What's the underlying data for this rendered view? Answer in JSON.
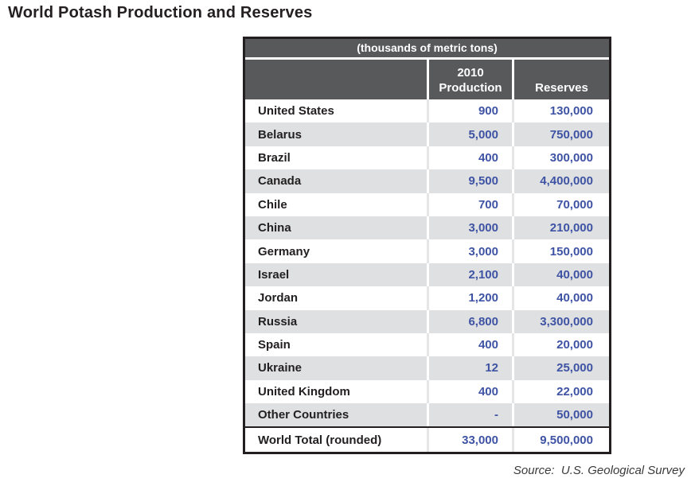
{
  "title": "World Potash Production and Reserves",
  "source": "Source:  U.S. Geological Survey",
  "table": {
    "units_caption": "(thousands of metric tons)",
    "headers": {
      "country": "",
      "production_line1": "2010",
      "production_line2": "Production",
      "reserves": "Reserves"
    },
    "rows": [
      {
        "country": "United States",
        "production": "900",
        "reserves": "130,000"
      },
      {
        "country": "Belarus",
        "production": "5,000",
        "reserves": "750,000"
      },
      {
        "country": "Brazil",
        "production": "400",
        "reserves": "300,000"
      },
      {
        "country": "Canada",
        "production": "9,500",
        "reserves": "4,400,000"
      },
      {
        "country": "Chile",
        "production": "700",
        "reserves": "70,000"
      },
      {
        "country": "China",
        "production": "3,000",
        "reserves": "210,000"
      },
      {
        "country": "Germany",
        "production": "3,000",
        "reserves": "150,000"
      },
      {
        "country": "Israel",
        "production": "2,100",
        "reserves": "40,000"
      },
      {
        "country": "Jordan",
        "production": "1,200",
        "reserves": "40,000"
      },
      {
        "country": "Russia",
        "production": "6,800",
        "reserves": "3,300,000"
      },
      {
        "country": "Spain",
        "production": "400",
        "reserves": "20,000"
      },
      {
        "country": "Ukraine",
        "production": "12",
        "reserves": "25,000"
      },
      {
        "country": "United Kingdom",
        "production": "400",
        "reserves": "22,000"
      },
      {
        "country": "Other Countries",
        "production": "-",
        "reserves": "50,000"
      }
    ],
    "total_row": {
      "country": "World Total (rounded)",
      "production": "33,000",
      "reserves": "9,500,000"
    }
  },
  "colors": {
    "header_bg": "#58595b",
    "row_alt_bg": "#dfe0e1",
    "number_blue": "#3e53a4",
    "border_black": "#231f20"
  }
}
